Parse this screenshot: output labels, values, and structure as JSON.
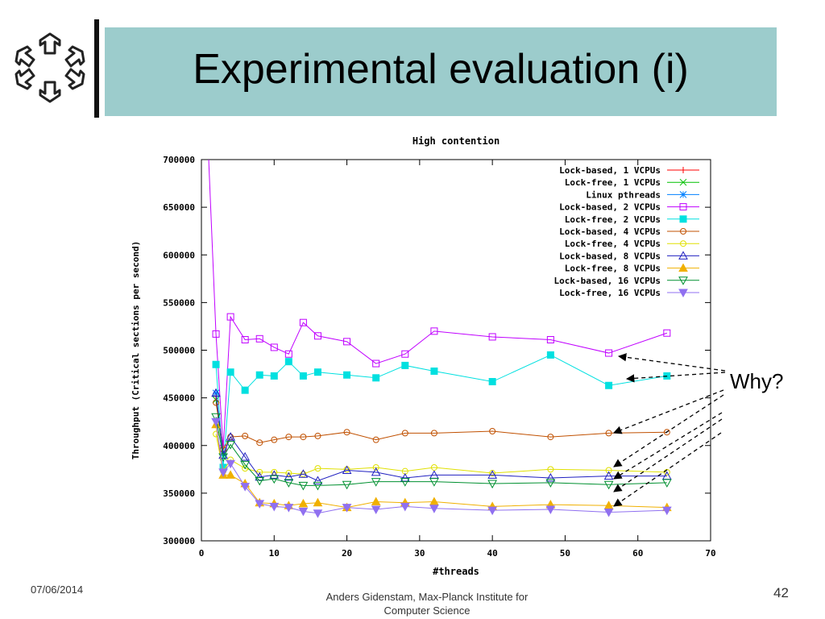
{
  "slide": {
    "title": "Experimental evaluation (i)",
    "annotation": "Why?",
    "footer_date": "07/06/2014",
    "footer_author_line1": "Anders Gidenstam, Max-Planck Institute for",
    "footer_author_line2": "Computer Science",
    "page_number": "42",
    "title_band_color": "#9ccccc"
  },
  "chart_data": {
    "type": "line",
    "title": "High contention",
    "xlabel": "#threads",
    "ylabel": "Throughput (Critical sections per second)",
    "xlim": [
      0,
      70
    ],
    "ylim": [
      300000,
      700000
    ],
    "xticks": [
      0,
      10,
      20,
      30,
      40,
      50,
      60,
      70
    ],
    "xtick_labels": [
      "0",
      "10",
      "20",
      "30",
      "40",
      "50",
      "60",
      "70"
    ],
    "yticks": [
      300000,
      350000,
      400000,
      450000,
      500000,
      550000,
      600000,
      650000,
      700000
    ],
    "ytick_labels": [
      "300000",
      "350000",
      "400000",
      "450000",
      "500000",
      "550000",
      "600000",
      "650000",
      "700000"
    ],
    "grid": false,
    "legend_position": "top-right",
    "series": [
      {
        "name": "Lock-based, 1 VCPUs",
        "color": "#ff0000",
        "marker": "plus",
        "x": [
          2,
          3
        ],
        "y": [
          452000,
          393000
        ]
      },
      {
        "name": "Lock-free, 1 VCPUs",
        "color": "#00c000",
        "marker": "x",
        "x": [
          2,
          3
        ],
        "y": [
          448000,
          388000
        ]
      },
      {
        "name": "Linux pthreads",
        "color": "#0080ff",
        "marker": "star",
        "x": [
          2,
          3
        ],
        "y": [
          455000,
          391000
        ]
      },
      {
        "name": "Lock-based, 2 VCPUs",
        "color": "#c000ff",
        "marker": "square-open",
        "x": [
          1,
          2,
          3,
          4,
          6,
          8,
          10,
          12,
          14,
          16,
          20,
          24,
          28,
          32,
          40,
          48,
          56,
          64
        ],
        "y": [
          null,
          517000,
          397000,
          535000,
          511000,
          512000,
          503000,
          496000,
          529000,
          515000,
          509000,
          486000,
          496000,
          520000,
          514000,
          511000,
          497000,
          518000
        ]
      },
      {
        "name": "Lock-free, 2 VCPUs",
        "color": "#00e0e0",
        "marker": "square-filled",
        "x": [
          2,
          3,
          4,
          6,
          8,
          10,
          12,
          14,
          16,
          20,
          24,
          28,
          32,
          40,
          48,
          56,
          64
        ],
        "y": [
          485000,
          377000,
          477000,
          458000,
          474000,
          473000,
          488000,
          473000,
          477000,
          474000,
          471000,
          484000,
          478000,
          467000,
          495000,
          463000,
          473000
        ]
      },
      {
        "name": "Lock-based, 4 VCPUs",
        "color": "#c05000",
        "marker": "circle-open",
        "x": [
          2,
          3,
          4,
          6,
          8,
          10,
          12,
          14,
          16,
          20,
          24,
          28,
          32,
          40,
          48,
          56,
          64
        ],
        "y": [
          445000,
          396000,
          409000,
          410000,
          403000,
          406000,
          409000,
          409000,
          410000,
          414000,
          406000,
          413000,
          413000,
          415000,
          409000,
          413000,
          414000
        ]
      },
      {
        "name": "Lock-free, 4 VCPUs",
        "color": "#e0e000",
        "marker": "circle-open",
        "x": [
          2,
          3,
          4,
          6,
          8,
          10,
          12,
          14,
          16,
          20,
          24,
          28,
          32,
          40,
          48,
          56,
          64
        ],
        "y": [
          412000,
          373000,
          385000,
          376000,
          372000,
          372000,
          371000,
          370000,
          376000,
          375000,
          377000,
          373000,
          377000,
          371000,
          375000,
          374000,
          372000
        ]
      },
      {
        "name": "Lock-based, 8 VCPUs",
        "color": "#2020c0",
        "marker": "triangle-open",
        "x": [
          2,
          3,
          4,
          6,
          8,
          10,
          12,
          14,
          16,
          20,
          24,
          28,
          32,
          40,
          48,
          56,
          64
        ],
        "y": [
          455000,
          390000,
          409000,
          388000,
          367000,
          369000,
          367000,
          370000,
          363000,
          374000,
          372000,
          366000,
          369000,
          369000,
          366000,
          368000,
          368000
        ]
      },
      {
        "name": "Lock-free, 8 VCPUs",
        "color": "#f0b000",
        "marker": "triangle-filled",
        "x": [
          2,
          3,
          4,
          6,
          8,
          10,
          12,
          14,
          16,
          20,
          24,
          28,
          32,
          40,
          48,
          56,
          64
        ],
        "y": [
          422000,
          369000,
          369000,
          360000,
          340000,
          339000,
          337000,
          339000,
          340000,
          335000,
          341000,
          340000,
          341000,
          336000,
          338000,
          337000,
          335000
        ]
      },
      {
        "name": "Lock-based, 16 VCPUs",
        "color": "#009030",
        "marker": "triangle-down-open",
        "x": [
          2,
          3,
          4,
          6,
          8,
          10,
          12,
          14,
          16,
          20,
          24,
          28,
          32,
          40,
          48,
          56,
          64
        ],
        "y": [
          430000,
          388000,
          401000,
          380000,
          363000,
          365000,
          361000,
          358000,
          358000,
          359000,
          362000,
          362000,
          362000,
          360000,
          361000,
          359000,
          361000
        ]
      },
      {
        "name": "Lock-free, 16 VCPUs",
        "color": "#9070f0",
        "marker": "triangle-down-filled",
        "x": [
          2,
          3,
          4,
          6,
          8,
          10,
          12,
          14,
          16,
          20,
          24,
          28,
          32,
          40,
          48,
          56,
          64
        ],
        "y": [
          425000,
          372000,
          381000,
          357000,
          339000,
          336000,
          335000,
          331000,
          329000,
          335000,
          333000,
          336000,
          334000,
          332000,
          333000,
          330000,
          332000
        ]
      }
    ]
  }
}
